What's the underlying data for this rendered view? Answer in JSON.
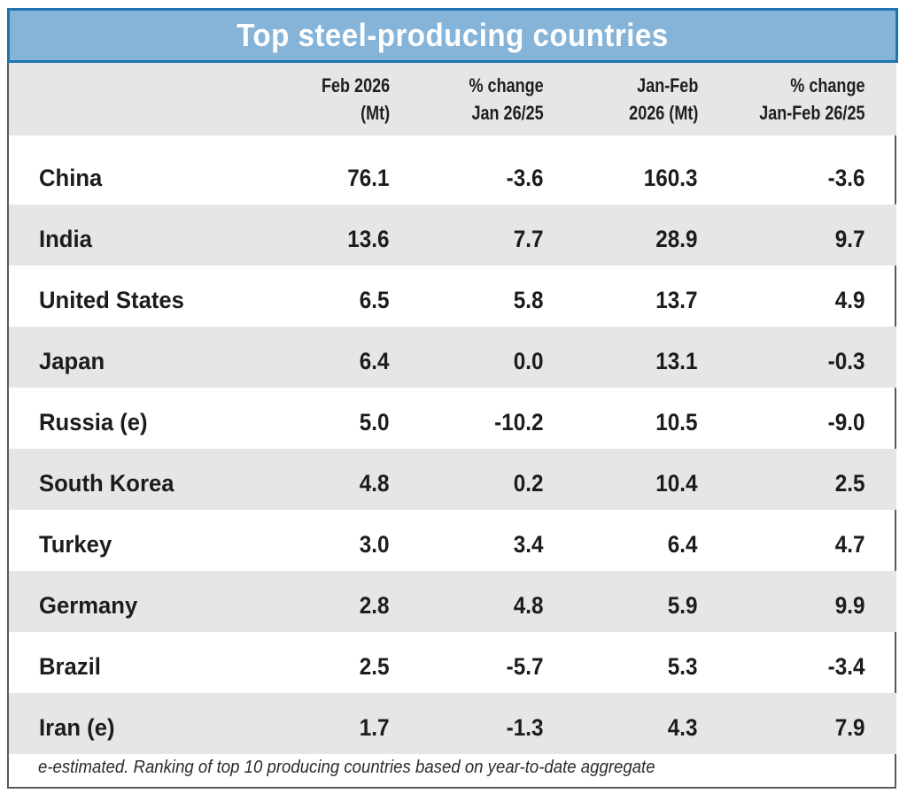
{
  "chart_data": {
    "type": "table",
    "title": "Top steel-producing countries",
    "columns": [
      {
        "key": "country",
        "label": [
          "",
          ""
        ]
      },
      {
        "key": "feb_2026_mt",
        "label": [
          "Feb 2026",
          "(Mt)"
        ]
      },
      {
        "key": "pct_change_jan",
        "label": [
          "% change",
          "Jan 26/25"
        ]
      },
      {
        "key": "jan_feb_2026_mt",
        "label": [
          "Jan-Feb",
          "2026 (Mt)"
        ]
      },
      {
        "key": "pct_change_jan_feb",
        "label": [
          "% change",
          "Jan-Feb 26/25"
        ]
      }
    ],
    "rows": [
      {
        "country": "China",
        "feb_2026_mt": "76.1",
        "pct_change_jan": "-3.6",
        "jan_feb_2026_mt": "160.3",
        "pct_change_jan_feb": "-3.6"
      },
      {
        "country": "India",
        "feb_2026_mt": "13.6",
        "pct_change_jan": "7.7",
        "jan_feb_2026_mt": "28.9",
        "pct_change_jan_feb": "9.7"
      },
      {
        "country": "United States",
        "feb_2026_mt": "6.5",
        "pct_change_jan": "5.8",
        "jan_feb_2026_mt": "13.7",
        "pct_change_jan_feb": "4.9"
      },
      {
        "country": "Japan",
        "feb_2026_mt": "6.4",
        "pct_change_jan": "0.0",
        "jan_feb_2026_mt": "13.1",
        "pct_change_jan_feb": "-0.3"
      },
      {
        "country": "Russia (e)",
        "feb_2026_mt": "5.0",
        "pct_change_jan": "-10.2",
        "jan_feb_2026_mt": "10.5",
        "pct_change_jan_feb": "-9.0"
      },
      {
        "country": "South Korea",
        "feb_2026_mt": "4.8",
        "pct_change_jan": "0.2",
        "jan_feb_2026_mt": "10.4",
        "pct_change_jan_feb": "2.5"
      },
      {
        "country": "Turkey",
        "feb_2026_mt": "3.0",
        "pct_change_jan": "3.4",
        "jan_feb_2026_mt": "6.4",
        "pct_change_jan_feb": "4.7"
      },
      {
        "country": "Germany",
        "feb_2026_mt": "2.8",
        "pct_change_jan": "4.8",
        "jan_feb_2026_mt": "5.9",
        "pct_change_jan_feb": "9.9"
      },
      {
        "country": "Brazil",
        "feb_2026_mt": "2.5",
        "pct_change_jan": "-5.7",
        "jan_feb_2026_mt": "5.3",
        "pct_change_jan_feb": "-3.4"
      },
      {
        "country": "Iran (e)",
        "feb_2026_mt": "1.7",
        "pct_change_jan": "-1.3",
        "jan_feb_2026_mt": "4.3",
        "pct_change_jan_feb": "7.9"
      }
    ],
    "footnote": "e-estimated. Ranking of top 10 producing countries based on year-to-date aggregate"
  },
  "colors": {
    "title_bar_fill": "#86b4d9",
    "title_bar_border": "#1e74b0",
    "title_text": "#ffffff",
    "shaded_row": "#e6e6e8",
    "frame_border": "#5a5a5a"
  }
}
